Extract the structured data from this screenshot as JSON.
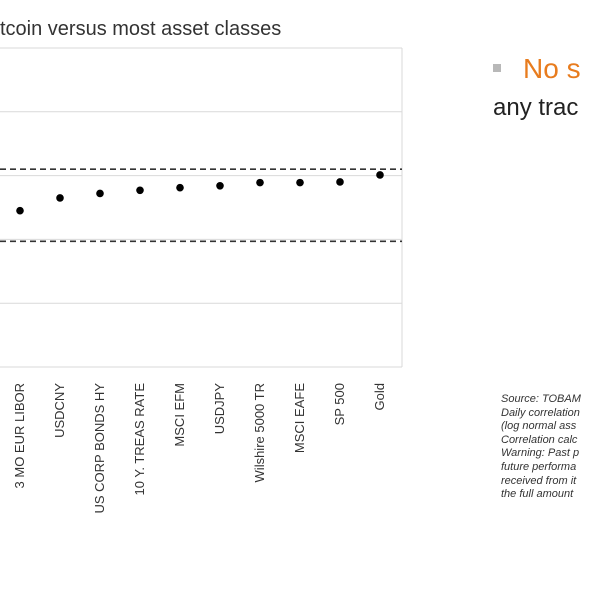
{
  "chart_data": {
    "type": "scatter",
    "title": "tcoin versus most asset classes",
    "categories": [
      "3 MO EUR LIBOR",
      "USDCNY",
      "US CORP BONDS HY",
      "10 Y. TREAS RATE",
      "MSCI EFM",
      "USDJPY",
      "Wilshire 5000 TR",
      "MSCI EAFE",
      "SP 500",
      "Gold"
    ],
    "values": [
      -0.005,
      0.015,
      0.022,
      0.027,
      0.031,
      0.034,
      0.039,
      0.039,
      0.04,
      0.051
    ],
    "ylim": [
      -0.25,
      0.25
    ],
    "reference_lines": [
      0.06,
      -0.053
    ],
    "grid": true,
    "marker_color": "#000000",
    "reference_line_color": "#333333"
  },
  "side": {
    "bullet_text": "No s",
    "bullet_continuation": "any trac",
    "accent_color": "#e87c1e"
  },
  "source_lines": [
    "Source: TOBAM",
    "Daily correlation",
    "(log normal ass",
    "Correlation calc",
    "Warning: Past p",
    "future performa",
    "received from it",
    "the full amount"
  ]
}
